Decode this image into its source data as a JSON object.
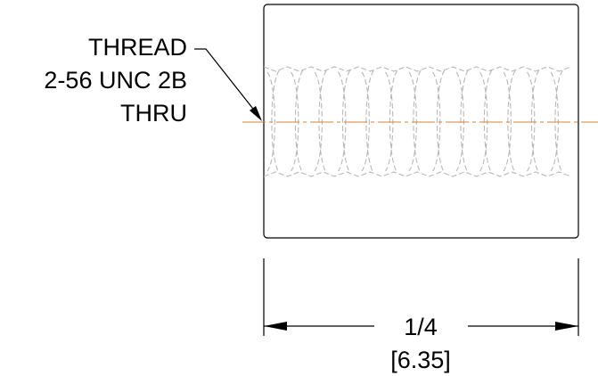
{
  "callout": {
    "line1": "THREAD",
    "line2": "2-56 UNC 2B",
    "line3": "THRU"
  },
  "dimension": {
    "fraction": "1/4",
    "metric": "[6.35]"
  },
  "colors": {
    "outline": "#000000",
    "hidden_thread": "#b8b8b8",
    "centerline": "#c8874a"
  }
}
